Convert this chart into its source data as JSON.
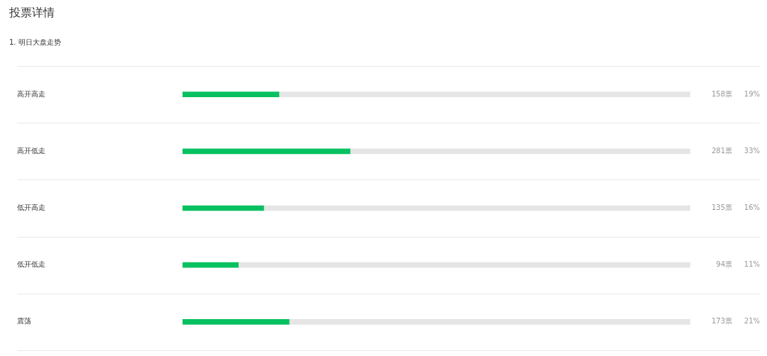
{
  "chart_data": {
    "type": "bar",
    "orientation": "horizontal",
    "stacked": true,
    "title": "投票详情",
    "subtitle": "1. 明日大盘走势",
    "categories": [
      "高开高走",
      "高开低走",
      "低开高走",
      "低开低走",
      "震荡"
    ],
    "series": [
      {
        "color": "#07c160",
        "values": [
          19,
          33,
          16,
          11,
          21
        ],
        "value_labels": [
          "19%",
          "33%",
          "16%",
          "11%",
          "21%"
        ]
      },
      {
        "color": "#e5e5e5",
        "values": [
          81,
          67,
          84,
          89,
          79
        ]
      }
    ],
    "xlim": [
      0,
      100
    ],
    "tick_labels": "y",
    "legend": false,
    "annotations": [
      "158票",
      "281票",
      "135票",
      "94票",
      "173票"
    ]
  }
}
